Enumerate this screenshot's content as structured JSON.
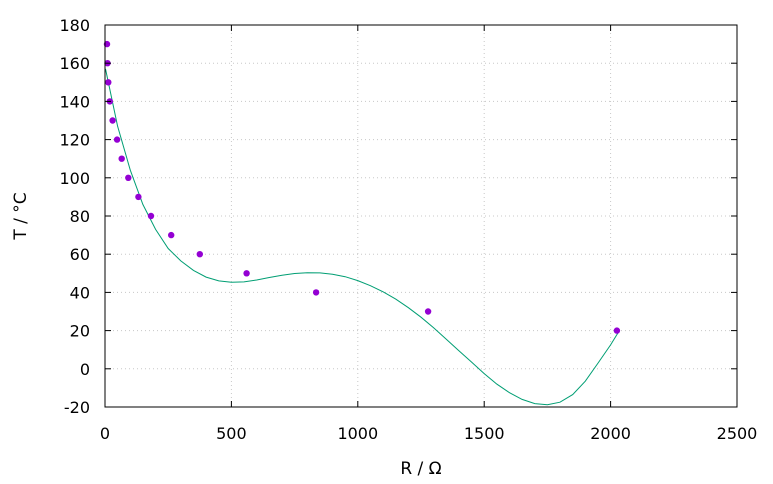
{
  "chart_data": {
    "type": "scatter",
    "xlabel": "R / Ω",
    "ylabel": "T / °C",
    "xlim": [
      0,
      2500
    ],
    "ylim": [
      -20,
      180
    ],
    "xticks": [
      0,
      500,
      1000,
      1500,
      2000,
      2500
    ],
    "yticks": [
      -20,
      0,
      20,
      40,
      60,
      80,
      100,
      120,
      140,
      160,
      180
    ],
    "grid": true,
    "points_color": "#9400d3",
    "fit_color": "#009e73",
    "series": [
      {
        "kind": "points",
        "x": [
          8,
          10,
          13,
          19,
          30,
          48,
          66,
          92,
          132,
          182,
          262,
          375,
          560,
          835,
          1278,
          2025
        ],
        "y": [
          170,
          160,
          150,
          140,
          130,
          120,
          110,
          100,
          90,
          80,
          70,
          60,
          50,
          40,
          30,
          20
        ]
      },
      {
        "kind": "fit-curve",
        "x": [
          2,
          50,
          100,
          150,
          200,
          250,
          300,
          350,
          400,
          450,
          500,
          550,
          600,
          650,
          700,
          750,
          800,
          850,
          900,
          950,
          1000,
          1050,
          1100,
          1150,
          1200,
          1250,
          1300,
          1350,
          1400,
          1450,
          1500,
          1550,
          1600,
          1650,
          1700,
          1750,
          1800,
          1850,
          1900,
          1950,
          2000,
          2030
        ],
        "y": [
          157,
          127,
          104,
          86,
          73,
          63,
          56.5,
          51.5,
          48,
          46,
          45.3,
          45.5,
          46.5,
          47.8,
          49,
          49.9,
          50.3,
          50.2,
          49.5,
          48.2,
          46.2,
          43.5,
          40.3,
          36.5,
          32,
          27,
          21.5,
          15.5,
          9.5,
          3.5,
          -2.5,
          -8,
          -12.5,
          -16,
          -18.2,
          -18.8,
          -17.5,
          -13.5,
          -6.5,
          3,
          12.5,
          19
        ]
      }
    ]
  }
}
